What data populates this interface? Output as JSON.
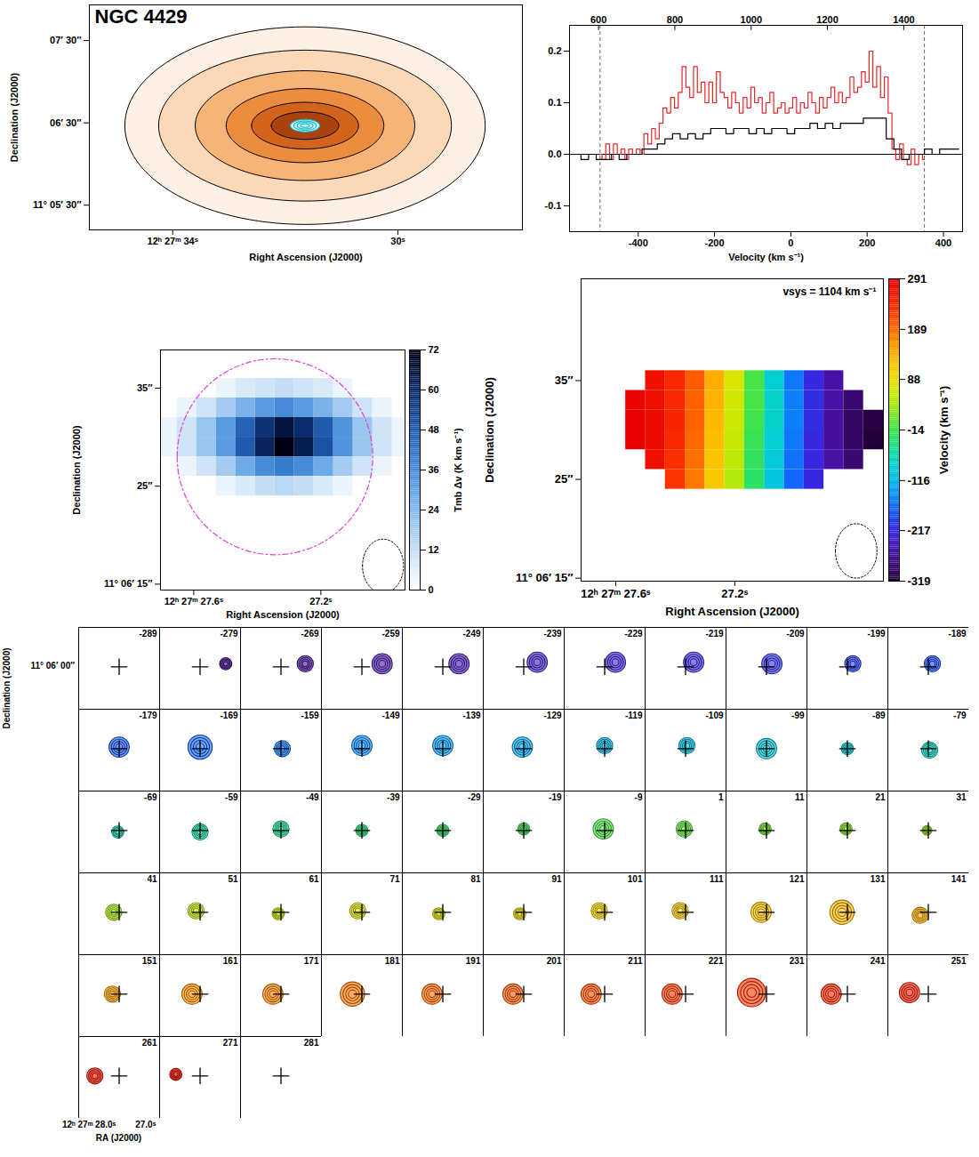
{
  "chart_data": [
    {
      "type": "image",
      "title": "NGC 4429",
      "xlabel": "Right Ascension (J2000)",
      "ylabel": "Declination (J2000)",
      "xlim": [
        35.48,
        27.79
      ],
      "ylim": [
        -78,
        86
      ],
      "xticks": [
        {
          "value": 34,
          "label": "12ʰ 27ᵐ 34ˢ"
        },
        {
          "value": 30,
          "label": "30ˢ"
        }
      ],
      "yticks": [
        {
          "value": 60,
          "label": "07′ 30″"
        },
        {
          "value": 0,
          "label": "06′ 30″"
        },
        {
          "value": -60,
          "label": "11° 05′ 30″"
        }
      ],
      "center": [
        31.65,
        -2
      ],
      "isophotes": [
        {
          "a": 3.2,
          "b": 72
        },
        {
          "a": 2.6,
          "b": 55
        },
        {
          "a": 1.95,
          "b": 40
        },
        {
          "a": 1.4,
          "b": 27
        },
        {
          "a": 0.95,
          "b": 17
        },
        {
          "a": 0.6,
          "b": 10
        }
      ],
      "co_contours": [
        {
          "a": 0.26,
          "b": 4.5
        },
        {
          "a": 0.2,
          "b": 3.4
        },
        {
          "a": 0.14,
          "b": 2.4
        },
        {
          "a": 0.08,
          "b": 1.3
        }
      ]
    },
    {
      "type": "line",
      "xlabel": "Velocity (km s⁻¹)",
      "xlim": [
        -580,
        450
      ],
      "xticks": [
        -400,
        -200,
        0,
        200,
        400
      ],
      "x2lim": [
        524,
        1554
      ],
      "x2ticks": [
        600,
        800,
        1000,
        1200,
        1400
      ],
      "ylim": [
        -0.15,
        0.25
      ],
      "yticks": [
        -0.1,
        {
          "value": 0,
          "label": "0.0"
        },
        0.1,
        0.2
      ],
      "hline": 0,
      "limits": [
        -500,
        350
      ],
      "series": [
        {
          "color": "#e8262a",
          "x": [
            -500,
            -490,
            -480,
            -470,
            -460,
            -450,
            -440,
            -430,
            -420,
            -410,
            -400,
            -390,
            -380,
            -370,
            -360,
            -350,
            -340,
            -330,
            -320,
            -310,
            -300,
            -290,
            -280,
            -270,
            -260,
            -250,
            -240,
            -230,
            -220,
            -210,
            -200,
            -190,
            -180,
            -170,
            -160,
            -150,
            -140,
            -130,
            -120,
            -110,
            -100,
            -90,
            -80,
            -70,
            -60,
            -50,
            -40,
            -30,
            -20,
            -10,
            0,
            10,
            20,
            30,
            40,
            50,
            60,
            70,
            80,
            90,
            100,
            110,
            120,
            130,
            140,
            150,
            160,
            170,
            180,
            190,
            200,
            210,
            220,
            230,
            240,
            250,
            260,
            270,
            280,
            290,
            300,
            310,
            320,
            330,
            340,
            350
          ],
          "values": [
            0.0,
            -0.01,
            0.02,
            -0.01,
            0.02,
            0.0,
            0.01,
            -0.01,
            0.01,
            0.0,
            0.01,
            0.0,
            0.04,
            0.02,
            0.05,
            0.03,
            0.06,
            0.09,
            0.08,
            0.11,
            0.09,
            0.12,
            0.17,
            0.13,
            0.11,
            0.17,
            0.12,
            0.14,
            0.1,
            0.14,
            0.1,
            0.16,
            0.12,
            0.11,
            0.09,
            0.12,
            0.1,
            0.08,
            0.11,
            0.09,
            0.13,
            0.1,
            0.11,
            0.08,
            0.1,
            0.12,
            0.08,
            0.09,
            0.1,
            0.08,
            0.09,
            0.11,
            0.08,
            0.1,
            0.09,
            0.12,
            0.1,
            0.08,
            0.11,
            0.09,
            0.11,
            0.13,
            0.1,
            0.12,
            0.1,
            0.11,
            0.15,
            0.12,
            0.13,
            0.16,
            0.14,
            0.2,
            0.13,
            0.17,
            0.11,
            0.15,
            0.08,
            0.01,
            -0.01,
            0.02,
            -0.01,
            -0.02,
            0.01,
            -0.02,
            0.0,
            -0.01
          ]
        },
        {
          "color": "#000000",
          "x": [
            -580,
            -560,
            -540,
            -520,
            -500,
            -480,
            -460,
            -440,
            -420,
            -400,
            -380,
            -360,
            -340,
            -320,
            -300,
            -280,
            -260,
            -240,
            -220,
            -200,
            -180,
            -160,
            -140,
            -120,
            -100,
            -80,
            -60,
            -40,
            -20,
            0,
            20,
            40,
            60,
            80,
            100,
            120,
            140,
            160,
            180,
            200,
            220,
            240,
            260,
            280,
            300,
            320,
            340,
            360,
            380,
            400,
            420,
            440
          ],
          "values": [
            0.0,
            0.0,
            -0.01,
            0.0,
            -0.01,
            -0.01,
            0.0,
            -0.01,
            0.0,
            0.0,
            0.01,
            0.01,
            0.02,
            0.03,
            0.04,
            0.03,
            0.04,
            0.03,
            0.04,
            0.05,
            0.05,
            0.04,
            0.05,
            0.05,
            0.04,
            0.05,
            0.04,
            0.05,
            0.05,
            0.04,
            0.05,
            0.05,
            0.06,
            0.05,
            0.06,
            0.05,
            0.06,
            0.06,
            0.06,
            0.07,
            0.07,
            0.07,
            0.03,
            0.01,
            -0.01,
            0.0,
            0.0,
            0.01,
            0.0,
            0.01,
            0.01,
            0.01
          ]
        }
      ]
    },
    {
      "type": "heatmap",
      "xlabel": "Right Ascension (J2000)",
      "ylabel": "Declination (J2000)",
      "xlim": [
        12.7,
        -12.3
      ],
      "ylim": [
        14.4,
        38.9
      ],
      "xticks": [
        {
          "value": 9.3,
          "label": "12ʰ 27ᵐ 27.6ˢ"
        },
        {
          "value": -3.7,
          "label": "27.2ˢ"
        }
      ],
      "yticks": [
        {
          "value": 35,
          "label": "35″"
        },
        {
          "value": 25,
          "label": "25″"
        },
        {
          "value": 15,
          "label": "11° 06′ 15″"
        }
      ],
      "x": [
        12,
        10,
        8,
        6,
        4,
        2,
        0,
        -2,
        -4,
        -6,
        -8,
        -10,
        -12
      ],
      "y": [
        35,
        33,
        31,
        29,
        27,
        25
      ],
      "values": [
        [
          0,
          0,
          0,
          4,
          8,
          10,
          12,
          10,
          8,
          4,
          0,
          0,
          0
        ],
        [
          0,
          4,
          10,
          18,
          26,
          32,
          36,
          32,
          26,
          18,
          10,
          4,
          0
        ],
        [
          4,
          10,
          20,
          32,
          46,
          58,
          66,
          60,
          48,
          34,
          20,
          10,
          4
        ],
        [
          4,
          10,
          20,
          32,
          48,
          62,
          72,
          64,
          50,
          34,
          20,
          10,
          4
        ],
        [
          0,
          4,
          10,
          18,
          28,
          36,
          40,
          36,
          28,
          18,
          10,
          4,
          0
        ],
        [
          0,
          0,
          0,
          4,
          8,
          12,
          14,
          12,
          8,
          4,
          0,
          0,
          0
        ]
      ],
      "colorbar": {
        "label": "Tmb Δv (K km s⁻¹)",
        "range": [
          0,
          72
        ],
        "ticks": [
          0,
          12,
          24,
          36,
          48,
          60,
          72
        ]
      },
      "circle": {
        "x": 1,
        "y": 28,
        "r": 10
      },
      "beam": {
        "major": 5.5,
        "minor": 4.2
      }
    },
    {
      "type": "heatmap",
      "xlabel": "Right Ascension (J2000)",
      "ylabel": "Declination (J2000)",
      "annotation": "vsys = 1104 km s⁻¹",
      "xlim": [
        17.5,
        -13
      ],
      "ylim": [
        14.7,
        45.3
      ],
      "xticks": [
        {
          "value": 14,
          "label": "12ʰ 27ᵐ 27.6ˢ"
        },
        {
          "value": 2,
          "label": "27.2ˢ"
        }
      ],
      "yticks": [
        {
          "value": 35,
          "label": "35″"
        },
        {
          "value": 25,
          "label": "25″"
        },
        {
          "value": 15,
          "label": "11° 06′ 15″"
        }
      ],
      "x": [
        12,
        10,
        8,
        6,
        4,
        2,
        0,
        -2,
        -4,
        -6,
        -8,
        -10,
        -12
      ],
      "y": [
        35,
        33,
        31,
        29,
        27,
        25
      ],
      "values": [
        [
          null,
          270,
          240,
          200,
          140,
          70,
          -10,
          -90,
          -160,
          -220,
          -260,
          null,
          null
        ],
        [
          285,
          270,
          240,
          195,
          135,
          65,
          -10,
          -85,
          -155,
          -215,
          -260,
          -290,
          null
        ],
        [
          290,
          275,
          245,
          195,
          130,
          60,
          -15,
          -85,
          -155,
          -215,
          -265,
          -295,
          -310
        ],
        [
          290,
          275,
          240,
          190,
          125,
          55,
          -20,
          -90,
          -160,
          -220,
          -265,
          -295,
          -315
        ],
        [
          null,
          270,
          235,
          185,
          120,
          50,
          -25,
          -95,
          -165,
          -220,
          -260,
          -290,
          null
        ],
        [
          null,
          null,
          230,
          180,
          115,
          45,
          -30,
          -100,
          -170,
          -220,
          null,
          null,
          null
        ]
      ],
      "colorbar": {
        "label": "Velocity (km s⁻¹)",
        "range": [
          -319,
          291
        ],
        "ticks": [
          291,
          189,
          88,
          -14,
          -116,
          -217,
          -319
        ]
      },
      "beam": {
        "major": 5.5,
        "minor": 4.2
      }
    },
    {
      "type": "channel_maps",
      "xlabel": "RA (J2000)",
      "ylabel": "Declination (J2000)",
      "xlim": [
        15,
        -15
      ],
      "ylim": [
        -14,
        13
      ],
      "xticks": [
        {
          "value": 11,
          "label": "12ʰ 27ᵐ 28.0ˢ"
        },
        {
          "value": -10,
          "label": "27.0ˢ"
        }
      ],
      "yticks": [
        {
          "value": 0,
          "label": "11° 06′ 00″"
        }
      ],
      "center": [
        0,
        0
      ],
      "velocities": [
        -289,
        -279,
        -269,
        -259,
        -249,
        -239,
        -229,
        -219,
        -209,
        -199,
        -189,
        -179,
        -169,
        -159,
        -149,
        -139,
        -129,
        -119,
        -109,
        -99,
        -89,
        -79,
        -69,
        -59,
        -49,
        -39,
        -29,
        -19,
        -9,
        1,
        11,
        21,
        31,
        41,
        51,
        61,
        71,
        81,
        91,
        101,
        111,
        121,
        131,
        141,
        151,
        161,
        171,
        181,
        191,
        201,
        211,
        221,
        231,
        241,
        251,
        261,
        271,
        281
      ],
      "x": [
        null,
        -9.5,
        -9,
        -7.5,
        -6,
        -5,
        -4,
        -3,
        -2,
        -2,
        -1.5,
        0,
        0,
        -0.5,
        0,
        0,
        0.5,
        0,
        -0.5,
        0,
        0,
        -0.5,
        0.5,
        0,
        0,
        0,
        0,
        0,
        0.5,
        0.5,
        0.5,
        0.5,
        0.5,
        2,
        1.5,
        1,
        1.5,
        1.5,
        1.5,
        2,
        2,
        2,
        2,
        3,
        2.5,
        3,
        3,
        3.5,
        4,
        4,
        5,
        5,
        5.5,
        6,
        7,
        9,
        9,
        null
      ],
      "y": [
        null,
        1,
        1,
        1,
        1,
        1.5,
        1.5,
        1.5,
        1,
        1,
        1,
        0.5,
        0.5,
        0,
        1,
        1,
        0.5,
        1,
        1,
        0,
        0,
        -0.5,
        -0.5,
        -0.5,
        0.5,
        0,
        0,
        0.5,
        0.5,
        0.5,
        0.5,
        0.5,
        0,
        0,
        0.5,
        -0.5,
        0.5,
        -0.5,
        -0.5,
        0.5,
        0.5,
        0,
        0,
        -1,
        0,
        0,
        0,
        0,
        0,
        0,
        0,
        0,
        0.5,
        0,
        0.5,
        0,
        0.5,
        null
      ],
      "size": [
        null,
        1.5,
        2,
        2.5,
        2.5,
        2.5,
        2.5,
        2.5,
        2.5,
        2,
        2,
        2.5,
        3,
        2,
        2.5,
        2.5,
        2.5,
        2,
        2,
        2.5,
        1.5,
        2,
        1.5,
        2,
        2,
        1.5,
        1.5,
        1.5,
        2.5,
        2,
        1.5,
        1.5,
        1.2,
        2,
        2,
        1.5,
        2,
        1.5,
        1.5,
        2,
        2,
        2.5,
        3,
        2,
        2,
        2.5,
        2.5,
        3,
        2.5,
        2.5,
        2.5,
        2.5,
        3.5,
        2.5,
        2.5,
        2,
        1.5,
        null
      ]
    }
  ]
}
